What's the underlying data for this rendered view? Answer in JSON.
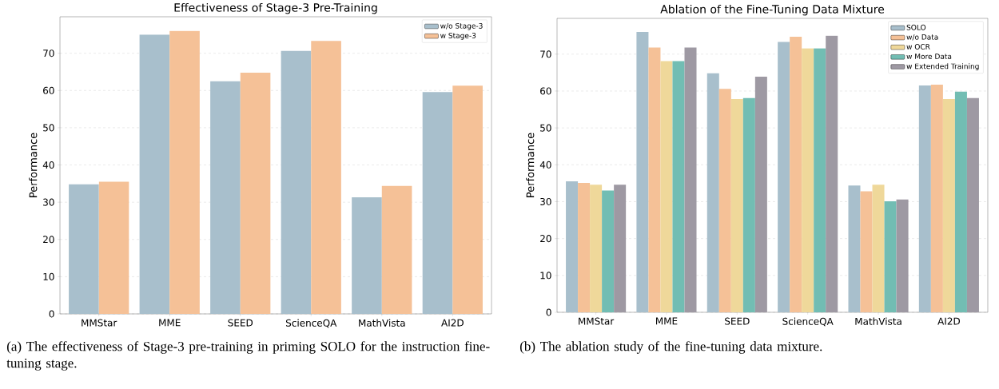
{
  "chart_data": [
    {
      "type": "bar",
      "title": "Effectiveness of Stage-3 Pre-Training",
      "ylabel": "Performance",
      "categories": [
        "MMStar",
        "MME",
        "SEED",
        "ScienceQA",
        "MathVista",
        "AI2D"
      ],
      "series": [
        {
          "name": "w/o Stage-3",
          "color": "#a8bfcc",
          "values": [
            34.8,
            75.0,
            62.5,
            70.6,
            31.3,
            59.6
          ]
        },
        {
          "name": "w Stage-3",
          "color": "#f5c197",
          "values": [
            35.5,
            76.0,
            64.8,
            73.3,
            34.4,
            61.3
          ]
        }
      ],
      "ylim": [
        0,
        79.8
      ],
      "yticks": [
        0,
        10,
        20,
        30,
        40,
        50,
        60,
        70
      ],
      "grid": "y",
      "legend": "top right",
      "annotations": [
        "(a) The effectiveness of Stage-3 pre-training in priming SOLO for the instruction fine-tuning stage."
      ]
    },
    {
      "type": "bar",
      "title": "Ablation of the Fine-Tuning Data Mixture",
      "ylabel": "Performance",
      "categories": [
        "MMStar",
        "MME",
        "SEED",
        "ScienceQA",
        "MathVista",
        "AI2D"
      ],
      "series": [
        {
          "name": "SOLO",
          "color": "#a8bfcc",
          "values": [
            35.5,
            76.0,
            64.8,
            73.3,
            34.4,
            61.5
          ]
        },
        {
          "name": "w/o Data",
          "color": "#f5c197",
          "values": [
            35.1,
            71.8,
            60.6,
            74.7,
            32.8,
            61.7
          ]
        },
        {
          "name": "w OCR",
          "color": "#efd89a",
          "values": [
            34.6,
            68.1,
            57.8,
            71.6,
            34.6,
            57.8
          ]
        },
        {
          "name": "w More Data",
          "color": "#72bdb3",
          "values": [
            33.0,
            68.1,
            58.1,
            71.6,
            30.1,
            59.8
          ]
        },
        {
          "name": "w Extended Training",
          "color": "#9e99a3",
          "values": [
            34.6,
            71.8,
            63.9,
            75.0,
            30.6,
            58.1
          ]
        }
      ],
      "ylim": [
        0,
        79.7
      ],
      "yticks": [
        0,
        10,
        20,
        30,
        40,
        50,
        60,
        70
      ],
      "grid": "y",
      "legend": "top right",
      "annotations": [
        "(b) The ablation study of the fine-tuning data mixture."
      ]
    }
  ]
}
